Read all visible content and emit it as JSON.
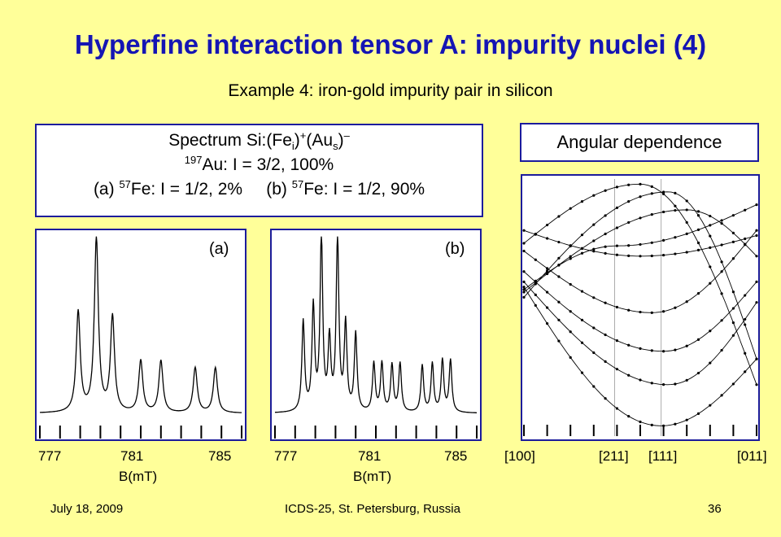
{
  "slide": {
    "title": "Hyperfine interaction tensor A: impurity nuclei (4)",
    "subtitle": "Example 4: iron-gold impurity pair in silicon"
  },
  "spectrum_box": {
    "line1_prefix": "Spectrum Si:(Fe",
    "line1_sub1": "i",
    "line1_sup1": "+",
    "line1_mid": "(Au",
    "line1_sub2": "s",
    "line1_sup2": "–",
    "line2_sup": "197",
    "line2_text": "Au: I = 3/2, 100%",
    "line3a_prefix": "(a) ",
    "line3a_sup": "57",
    "line3a_text": "Fe: I = 1/2, 2%",
    "line3b_prefix": "(b) ",
    "line3b_sup": "57",
    "line3b_text": "Fe: I = 1/2, 90%"
  },
  "angular_box": {
    "label": "Angular dependence"
  },
  "chart_data": [
    {
      "type": "line",
      "panel_label": "(a)",
      "xlabel": "B(mT)",
      "x_ticks": [
        "777",
        "781",
        "785"
      ],
      "xlim": [
        776,
        786
      ],
      "peaks": [
        {
          "x": 777.9,
          "height": 0.58
        },
        {
          "x": 778.8,
          "height": 1.0
        },
        {
          "x": 779.6,
          "height": 0.55
        },
        {
          "x": 781.0,
          "height": 0.3
        },
        {
          "x": 782.0,
          "height": 0.3
        },
        {
          "x": 783.7,
          "height": 0.26
        },
        {
          "x": 784.7,
          "height": 0.26
        }
      ]
    },
    {
      "type": "line",
      "panel_label": "(b)",
      "xlabel": "B(mT)",
      "x_ticks": [
        "777",
        "781",
        "785"
      ],
      "xlim": [
        776,
        786
      ],
      "peaks": [
        {
          "x": 777.4,
          "height": 0.52
        },
        {
          "x": 777.9,
          "height": 0.6
        },
        {
          "x": 778.3,
          "height": 1.0
        },
        {
          "x": 778.7,
          "height": 0.4
        },
        {
          "x": 779.1,
          "height": 1.0
        },
        {
          "x": 779.5,
          "height": 0.5
        },
        {
          "x": 780.0,
          "height": 0.45
        },
        {
          "x": 780.9,
          "height": 0.28
        },
        {
          "x": 781.3,
          "height": 0.28
        },
        {
          "x": 781.8,
          "height": 0.27
        },
        {
          "x": 782.2,
          "height": 0.28
        },
        {
          "x": 783.3,
          "height": 0.27
        },
        {
          "x": 783.8,
          "height": 0.28
        },
        {
          "x": 784.3,
          "height": 0.3
        },
        {
          "x": 784.7,
          "height": 0.3
        }
      ]
    },
    {
      "type": "scatter",
      "x_ticks": [
        "[100]",
        "[211]",
        "[111]",
        "[011]"
      ],
      "x_tick_pos": [
        0,
        0.39,
        0.59,
        1.0
      ],
      "curves": [
        {
          "y0": 0.58,
          "peak": 0.04,
          "at": 0.59,
          "y1": 0.3
        },
        {
          "y0": 0.6,
          "peak": 0.2,
          "at": 0.62,
          "y1": 0.52
        },
        {
          "y0": 0.64,
          "peak": 0.33,
          "at": 0.6,
          "y1": 0.6
        },
        {
          "y0": 0.72,
          "peak": 0.48,
          "at": 0.55,
          "y1": 0.8
        },
        {
          "y0": 0.54,
          "peak": 0.95,
          "at": 0.62,
          "y1": 0.3
        },
        {
          "y0": 0.75,
          "peak": 0.98,
          "at": 0.5,
          "y1": 0.2
        },
        {
          "y0": 0.57,
          "peak": 0.74,
          "at": 0.4,
          "y1": 0.9
        },
        {
          "y0": 0.8,
          "peak": 0.7,
          "at": 0.5,
          "y1": 0.78
        },
        {
          "y0": 0.56,
          "peak": 0.88,
          "at": 0.7,
          "y1": 0.7
        }
      ]
    }
  ],
  "footer": {
    "date": "July 18, 2009",
    "venue": "ICDS-25, St. Petersburg, Russia",
    "page": "36"
  }
}
